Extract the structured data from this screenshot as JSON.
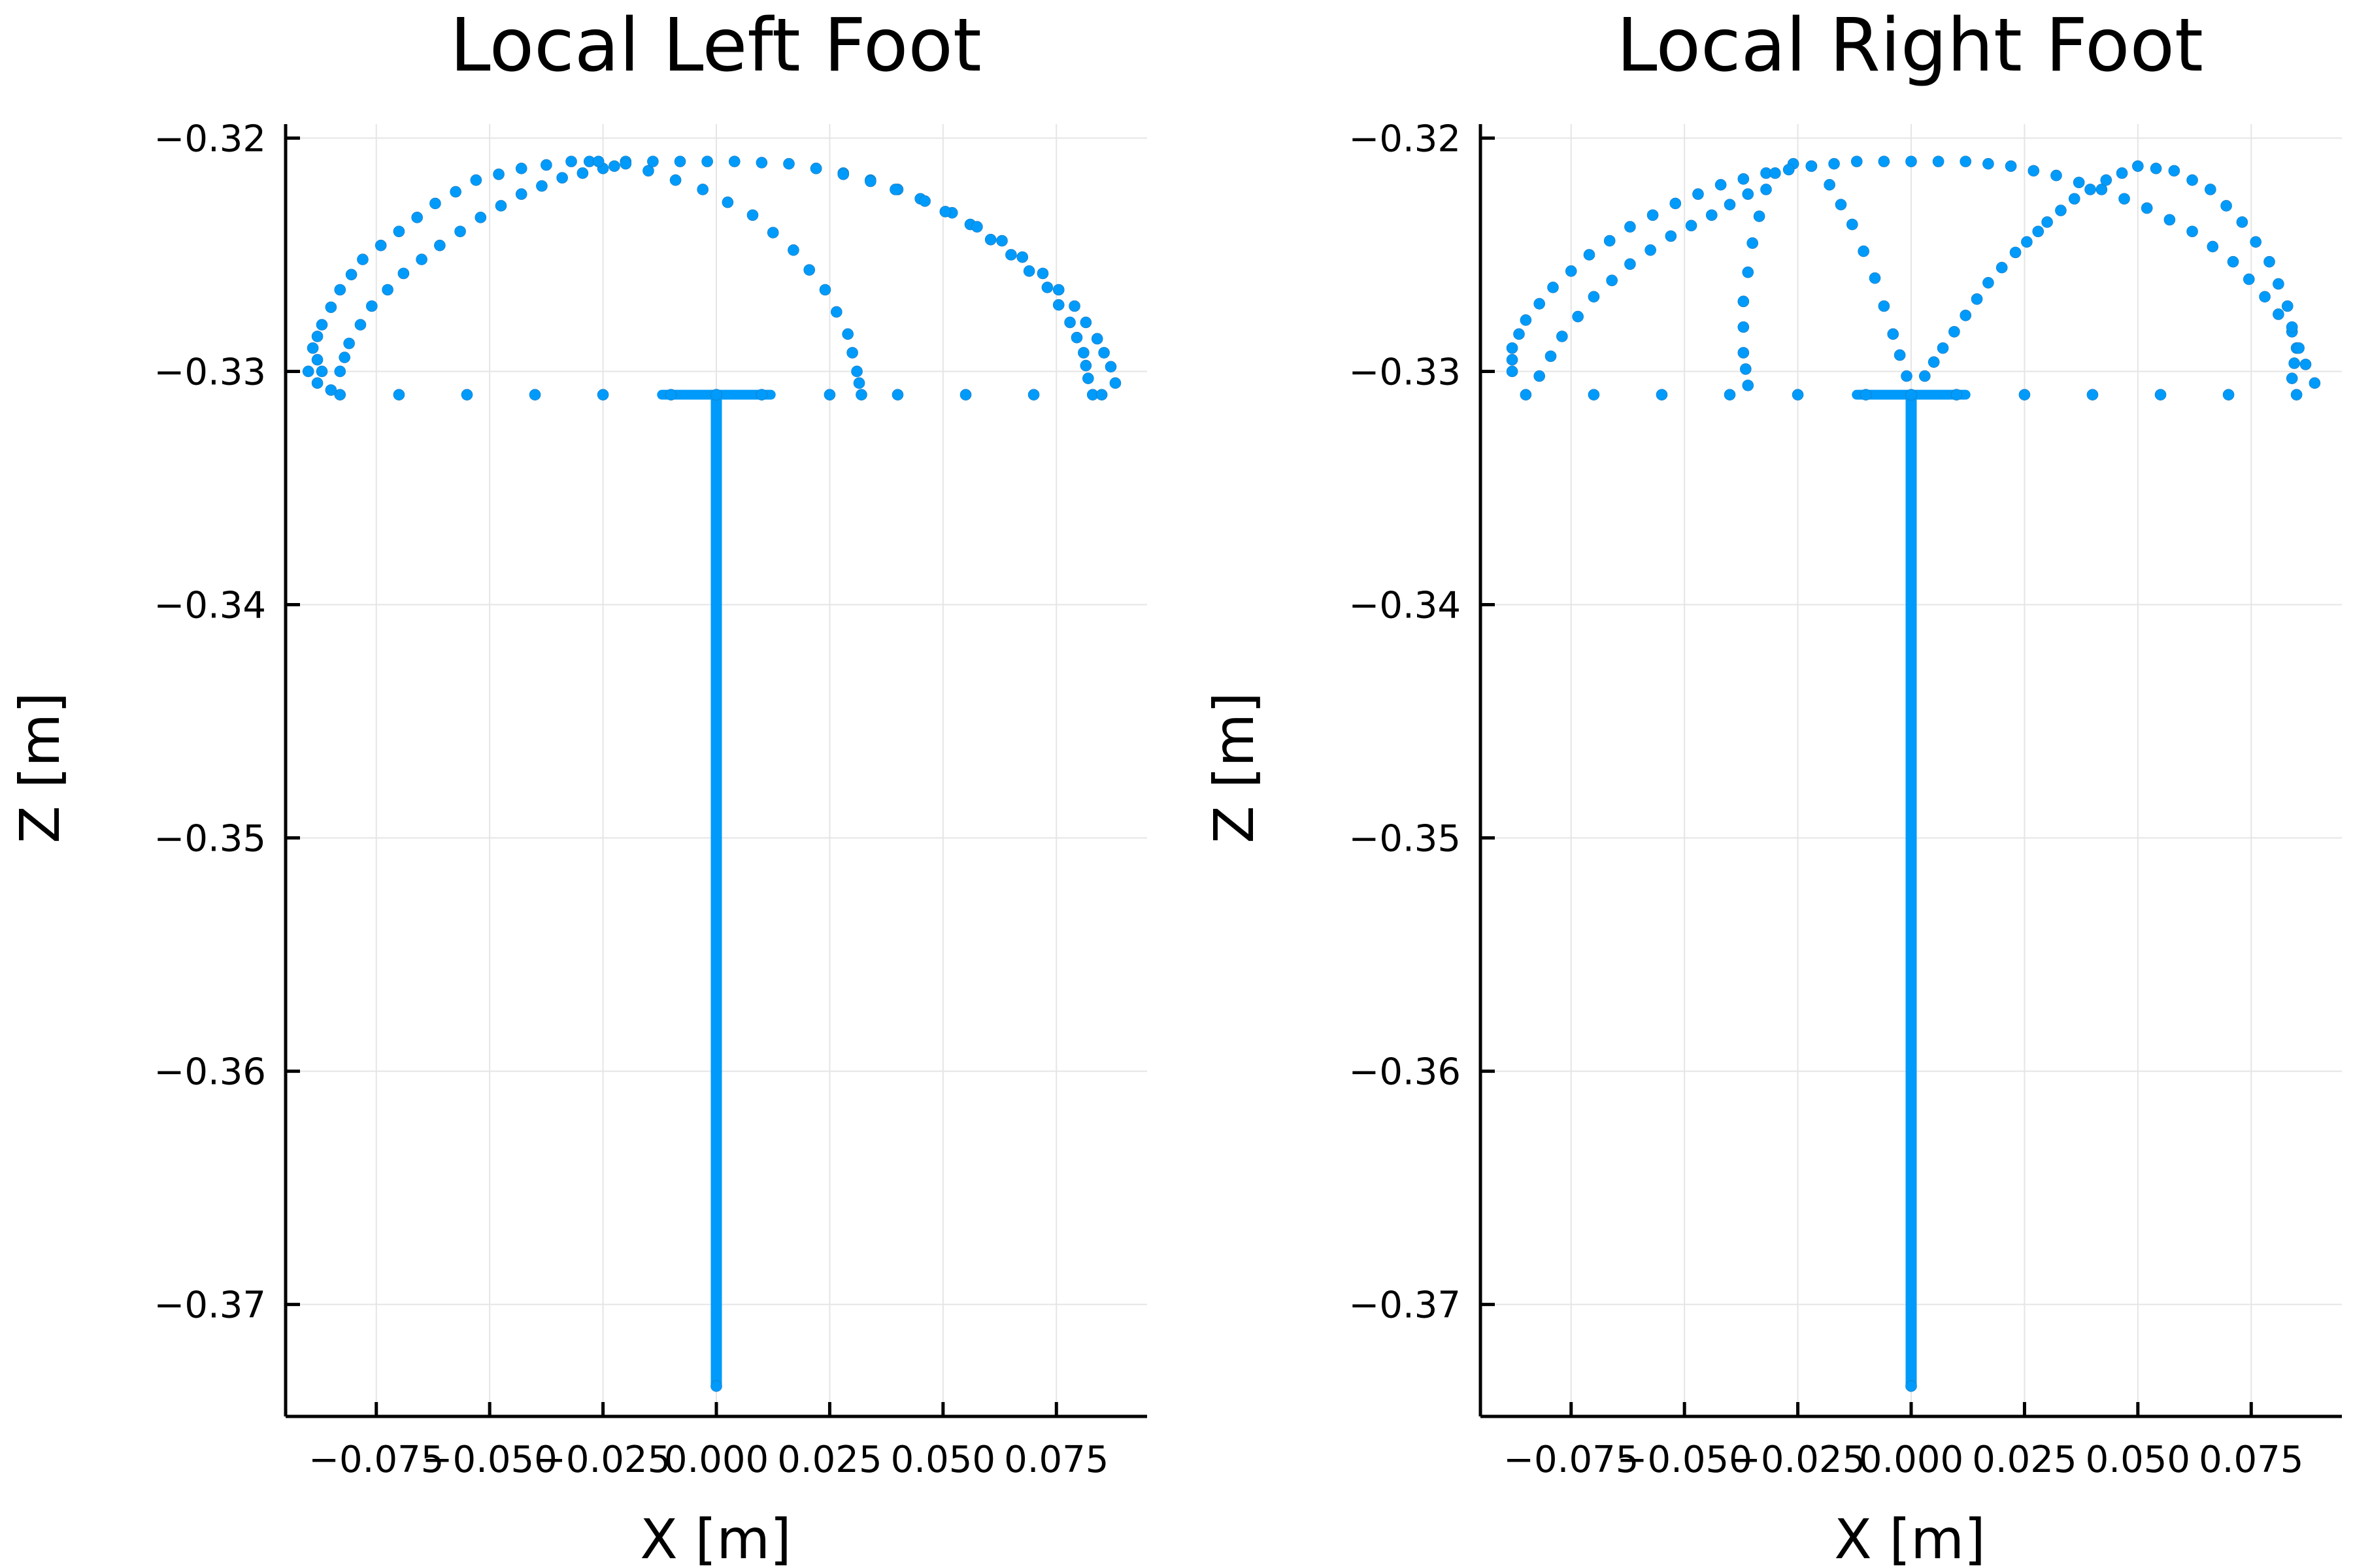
{
  "chart_data": [
    {
      "type": "scatter",
      "title": "Local Left Foot",
      "xlabel": "X [m]",
      "ylabel": "Z [m]",
      "xlim": [
        -0.095,
        0.095
      ],
      "ylim": [
        -0.3748,
        -0.3194
      ],
      "xticks": [
        -0.075,
        -0.05,
        -0.025,
        0.0,
        0.025,
        0.05,
        0.075
      ],
      "xtick_labels": [
        "−0.075",
        "−0.050",
        "−0.025",
        "0.000",
        "0.025",
        "0.050",
        "0.075"
      ],
      "yticks": [
        -0.32,
        -0.33,
        -0.34,
        -0.35,
        -0.36,
        -0.37
      ],
      "ytick_labels": [
        "−0.32",
        "−0.33",
        "−0.34",
        "−0.35",
        "−0.36",
        "−0.37"
      ],
      "grid": true,
      "legend": "none",
      "marker_color": "#009AFA",
      "series": [
        {
          "points": [
            [
              0.0,
              -0.3735
            ],
            [
              0.0,
              -0.331
            ],
            [
              -0.083,
              -0.331
            ],
            [
              -0.07,
              -0.331
            ],
            [
              -0.055,
              -0.331
            ],
            [
              -0.04,
              -0.331
            ],
            [
              -0.025,
              -0.331
            ],
            [
              -0.01,
              -0.331
            ],
            [
              0.01,
              -0.331
            ],
            [
              0.025,
              -0.331
            ],
            [
              0.04,
              -0.331
            ],
            [
              0.055,
              -0.331
            ],
            [
              0.07,
              -0.331
            ],
            [
              0.083,
              -0.331
            ],
            [
              -0.087,
              -0.33
            ],
            [
              -0.089,
              -0.329
            ],
            [
              -0.087,
              -0.328
            ],
            [
              -0.083,
              -0.3265
            ],
            [
              -0.078,
              -0.3252
            ],
            [
              -0.07,
              -0.324
            ],
            [
              -0.062,
              -0.3228
            ],
            [
              -0.053,
              -0.3218
            ],
            [
              -0.043,
              -0.3213
            ],
            [
              -0.032,
              -0.321
            ],
            [
              -0.02,
              -0.321
            ],
            [
              -0.008,
              -0.321
            ],
            [
              0.004,
              -0.321
            ],
            [
              0.016,
              -0.3211
            ],
            [
              0.028,
              -0.3215
            ],
            [
              0.04,
              -0.3222
            ],
            [
              0.052,
              -0.3232
            ],
            [
              0.063,
              -0.3244
            ],
            [
              0.072,
              -0.3258
            ],
            [
              0.079,
              -0.3272
            ],
            [
              0.084,
              -0.3286
            ],
            [
              0.087,
              -0.3298
            ],
            [
              0.088,
              -0.3305
            ],
            [
              0.085,
              -0.331
            ],
            [
              -0.083,
              -0.33
            ],
            [
              -0.081,
              -0.3288
            ],
            [
              -0.076,
              -0.3272
            ],
            [
              -0.069,
              -0.3258
            ],
            [
              -0.061,
              -0.3246
            ],
            [
              -0.052,
              -0.3234
            ],
            [
              -0.043,
              -0.3224
            ],
            [
              -0.034,
              -0.3217
            ],
            [
              -0.025,
              -0.3213
            ],
            [
              -0.02,
              -0.3211
            ],
            [
              0.022,
              -0.3213
            ],
            [
              0.034,
              -0.3218
            ],
            [
              0.045,
              -0.3226
            ],
            [
              0.056,
              -0.3237
            ],
            [
              0.065,
              -0.325
            ],
            [
              0.073,
              -0.3264
            ],
            [
              0.078,
              -0.3279
            ],
            [
              0.081,
              -0.3292
            ],
            [
              0.082,
              -0.3303
            ],
            [
              -0.028,
              -0.321
            ],
            [
              -0.015,
              -0.3214
            ],
            [
              -0.003,
              -0.3222
            ],
            [
              0.008,
              -0.3233
            ],
            [
              0.017,
              -0.3248
            ],
            [
              0.024,
              -0.3265
            ],
            [
              0.029,
              -0.3284
            ],
            [
              0.031,
              -0.33
            ],
            [
              0.032,
              -0.331
            ],
            [
              -0.09,
              -0.33
            ],
            [
              -0.088,
              -0.3305
            ],
            [
              -0.085,
              -0.3308
            ]
          ]
        }
      ]
    },
    {
      "type": "scatter",
      "title": "Local Right Foot",
      "xlabel": "X [m]",
      "ylabel": "Z [m]",
      "xlim": [
        -0.095,
        0.095
      ],
      "ylim": [
        -0.3748,
        -0.3194
      ],
      "xticks": [
        -0.075,
        -0.05,
        -0.025,
        0.0,
        0.025,
        0.05,
        0.075
      ],
      "xtick_labels": [
        "−0.075",
        "−0.050",
        "−0.025",
        "0.000",
        "0.025",
        "0.050",
        "0.075"
      ],
      "yticks": [
        -0.32,
        -0.33,
        -0.34,
        -0.35,
        -0.36,
        -0.37
      ],
      "ytick_labels": [
        "−0.32",
        "−0.33",
        "−0.34",
        "−0.35",
        "−0.36",
        "−0.37"
      ],
      "grid": true,
      "legend": "none",
      "marker_color": "#009AFA",
      "series": [
        {
          "points": [
            [
              0.0,
              -0.3735
            ],
            [
              0.0,
              -0.331
            ],
            [
              -0.085,
              -0.331
            ],
            [
              -0.07,
              -0.331
            ],
            [
              -0.055,
              -0.331
            ],
            [
              -0.04,
              -0.331
            ],
            [
              -0.025,
              -0.331
            ],
            [
              -0.01,
              -0.331
            ],
            [
              0.01,
              -0.331
            ],
            [
              0.025,
              -0.331
            ],
            [
              0.04,
              -0.331
            ],
            [
              0.055,
              -0.331
            ],
            [
              0.07,
              -0.331
            ],
            [
              0.085,
              -0.331
            ],
            [
              -0.088,
              -0.33
            ],
            [
              -0.088,
              -0.329
            ],
            [
              -0.085,
              -0.3278
            ],
            [
              -0.079,
              -0.3264
            ],
            [
              -0.071,
              -0.325
            ],
            [
              -0.062,
              -0.3238
            ],
            [
              -0.052,
              -0.3228
            ],
            [
              -0.042,
              -0.322
            ],
            [
              -0.032,
              -0.3215
            ],
            [
              -0.022,
              -0.3212
            ],
            [
              -0.012,
              -0.321
            ],
            [
              0.0,
              -0.321
            ],
            [
              0.012,
              -0.321
            ],
            [
              0.022,
              -0.3212
            ],
            [
              0.032,
              -0.3216
            ],
            [
              0.042,
              -0.3222
            ],
            [
              0.052,
              -0.323
            ],
            [
              0.062,
              -0.324
            ],
            [
              0.071,
              -0.3253
            ],
            [
              0.078,
              -0.3268
            ],
            [
              0.084,
              -0.3283
            ],
            [
              0.087,
              -0.3297
            ],
            [
              0.089,
              -0.3305
            ],
            [
              -0.082,
              -0.3302
            ],
            [
              -0.077,
              -0.3285
            ],
            [
              -0.07,
              -0.3268
            ],
            [
              -0.062,
              -0.3254
            ],
            [
              -0.053,
              -0.3242
            ],
            [
              -0.044,
              -0.3233
            ],
            [
              -0.036,
              -0.3224
            ],
            [
              0.03,
              -0.3236
            ],
            [
              0.036,
              -0.3226
            ],
            [
              0.043,
              -0.3218
            ],
            [
              0.05,
              -0.3212
            ],
            [
              0.058,
              -0.3214
            ],
            [
              0.066,
              -0.3222
            ],
            [
              0.073,
              -0.3236
            ],
            [
              0.079,
              -0.3253
            ],
            [
              0.083,
              -0.3272
            ],
            [
              0.085,
              -0.329
            ],
            [
              0.084,
              -0.3303
            ],
            [
              -0.03,
              -0.3215
            ],
            [
              -0.026,
              -0.3211
            ],
            [
              -0.022,
              -0.3212
            ],
            [
              -0.018,
              -0.322
            ],
            [
              -0.013,
              -0.3237
            ],
            [
              -0.008,
              -0.326
            ],
            [
              -0.004,
              -0.3284
            ],
            [
              -0.001,
              -0.3302
            ],
            [
              -0.032,
              -0.3222
            ],
            [
              -0.035,
              -0.3245
            ],
            [
              -0.037,
              -0.327
            ],
            [
              -0.037,
              -0.3292
            ],
            [
              -0.036,
              -0.3306
            ],
            [
              0.003,
              -0.3302
            ],
            [
              0.007,
              -0.329
            ],
            [
              0.012,
              -0.3276
            ],
            [
              0.017,
              -0.3262
            ],
            [
              0.023,
              -0.3249
            ],
            [
              0.028,
              -0.324
            ]
          ]
        }
      ]
    }
  ]
}
